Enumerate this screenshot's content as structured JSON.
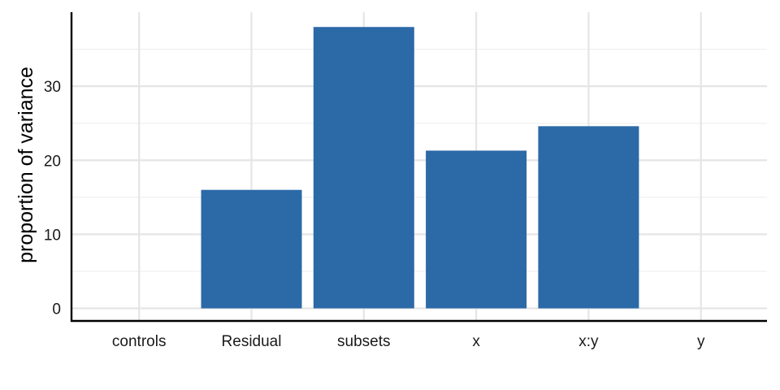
{
  "chart_data": {
    "type": "bar",
    "categories": [
      "controls",
      "Residual",
      "subsets",
      "x",
      "x:y",
      "y"
    ],
    "values": [
      0,
      16,
      38,
      21.3,
      24.6,
      0
    ],
    "title": "",
    "xlabel": "",
    "ylabel": "proportion of variance",
    "ylim": [
      -1.7,
      40
    ],
    "yticks": [
      0,
      10,
      20,
      30
    ],
    "grid": true,
    "bar_color": "#2c69a7"
  }
}
